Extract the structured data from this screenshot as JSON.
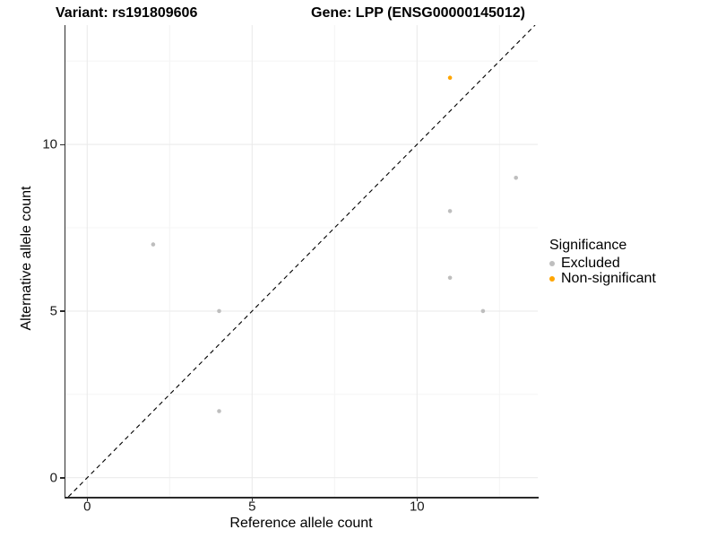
{
  "chart_data": {
    "type": "scatter",
    "title_left": "Variant: rs191809606",
    "title_right": "Gene: LPP (ENSG00000145012)",
    "xlabel": "Reference allele count",
    "ylabel": "Alternative allele count",
    "xlim": [
      -0.66,
      13.66
    ],
    "ylim": [
      -0.57,
      13.58
    ],
    "major_breaks": [
      0,
      5,
      10
    ],
    "minor_breaks": [
      2.5,
      7.5,
      12.5
    ],
    "tick_labels": [
      "0",
      "5",
      "10"
    ],
    "grid": "major and minor gridlines, light gray on white",
    "legend_title": "Significance",
    "legend_position": "right",
    "reference_line": {
      "type": "identity y=x",
      "style": "dashed",
      "color": "#000000"
    },
    "series": [
      {
        "name": "Excluded",
        "color": "#bebebe",
        "points": [
          [
            2,
            7
          ],
          [
            4,
            5
          ],
          [
            4,
            2
          ],
          [
            11,
            8
          ],
          [
            11,
            6
          ],
          [
            12,
            5
          ],
          [
            13,
            9
          ]
        ]
      },
      {
        "name": "Non-significant",
        "color": "#ffa500",
        "points": [
          [
            11,
            12
          ]
        ]
      }
    ]
  },
  "style_colors": {
    "axis_line": "#2b2b2b",
    "grid_major": "#e9e9e9",
    "grid_minor": "#f4f4f4",
    "tick_text": "#1a1a1a"
  }
}
